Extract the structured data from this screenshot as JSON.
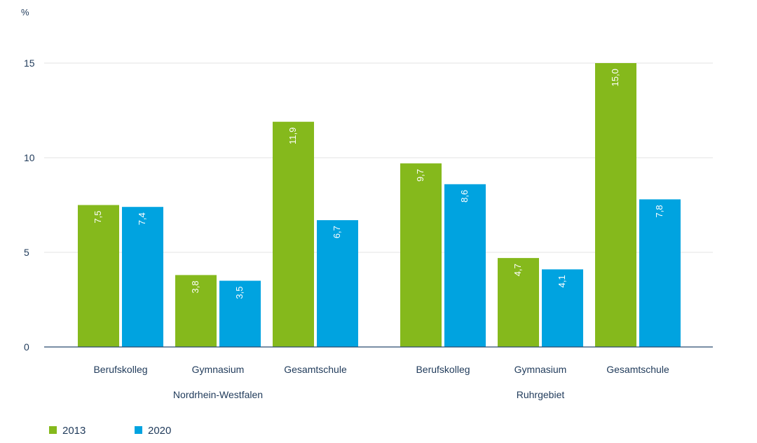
{
  "chart_data": {
    "type": "bar",
    "unit_label": "%",
    "ylim": [
      0,
      15
    ],
    "yticks": [
      0,
      5,
      10,
      15
    ],
    "grid": true,
    "legend_placement": "bottom-left",
    "groups": [
      {
        "name": "Nordrhein-Westfalen",
        "categories": [
          "Berufskolleg",
          "Gymnasium",
          "Gesamtschule"
        ]
      },
      {
        "name": "Ruhrgebiet",
        "categories": [
          "Berufskolleg",
          "Gymnasium",
          "Gesamtschule"
        ]
      }
    ],
    "series": [
      {
        "name": "2013",
        "color": "#85b91c",
        "values": [
          7.5,
          3.8,
          11.9,
          9.7,
          4.7,
          15.0
        ],
        "labels": [
          "7,5",
          "3,8",
          "11,9",
          "9,7",
          "4,7",
          "15,0"
        ]
      },
      {
        "name": "2020",
        "color": "#00a3e0",
        "values": [
          7.4,
          3.5,
          6.7,
          8.6,
          4.1,
          7.8
        ],
        "labels": [
          "7,4",
          "3,5",
          "6,7",
          "8,6",
          "4,1",
          "7,8"
        ]
      }
    ],
    "axis_color": "#2b4a6f",
    "grid_color": "#e3e3e3"
  }
}
